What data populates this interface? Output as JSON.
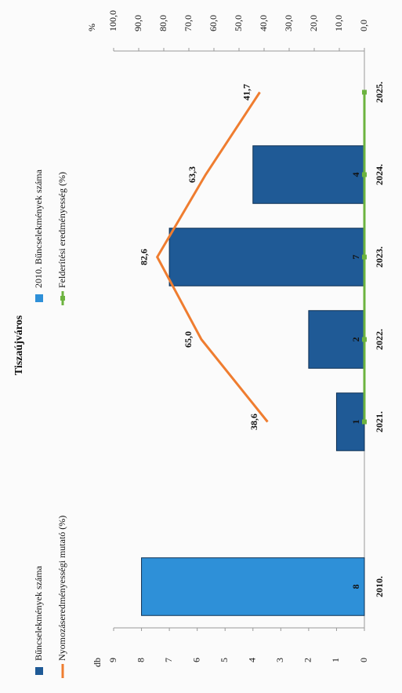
{
  "chart_data": {
    "type": "bar",
    "title": "Tiszaújváros",
    "categories": [
      "2010.",
      null,
      "2021.",
      "2022.",
      "2023.",
      "2024.",
      "2025."
    ],
    "y_label": "db",
    "y2_label": "%",
    "ylim": [
      0,
      9
    ],
    "yticks": [
      0,
      1,
      2,
      3,
      4,
      5,
      6,
      7,
      8,
      9
    ],
    "y2lim": [
      0,
      100
    ],
    "y2ticks": [
      {
        "value": 0,
        "label": "0,0"
      },
      {
        "value": 10,
        "label": "10,0"
      },
      {
        "value": 20,
        "label": "20,0"
      },
      {
        "value": 30,
        "label": "30,0"
      },
      {
        "value": 40,
        "label": "40,0"
      },
      {
        "value": 50,
        "label": "50,0"
      },
      {
        "value": 60,
        "label": "60,0"
      },
      {
        "value": 70,
        "label": "70,0"
      },
      {
        "value": 80,
        "label": "80,0"
      },
      {
        "value": 90,
        "label": "90,0"
      },
      {
        "value": 100,
        "label": "100,0"
      }
    ],
    "series": [
      {
        "name": "Bűncselekmények száma",
        "type": "bar",
        "color": "#1f5a96",
        "values": [
          null,
          null,
          1,
          2,
          7,
          4,
          null
        ]
      },
      {
        "name": "2010. Bűncselekmények száma",
        "type": "bar",
        "color": "#2e90d8",
        "values": [
          8,
          null,
          null,
          null,
          null,
          null,
          null
        ]
      },
      {
        "name": "Nyomozáseredményességi mutató (%)",
        "type": "line",
        "axis": "y2",
        "color": "#ef7d30",
        "values": [
          null,
          null,
          38.6,
          65.0,
          82.6,
          63.3,
          41.7
        ],
        "value_labels": [
          null,
          null,
          "38,6",
          "65,0",
          "82,6",
          "63,3",
          "41,7"
        ]
      },
      {
        "name": "Felderítési eredményesség (%)",
        "type": "line",
        "axis": "y2",
        "color": "#6cb33f",
        "markers": true,
        "values": [
          null,
          null,
          0,
          0,
          0,
          0,
          0
        ]
      }
    ]
  }
}
